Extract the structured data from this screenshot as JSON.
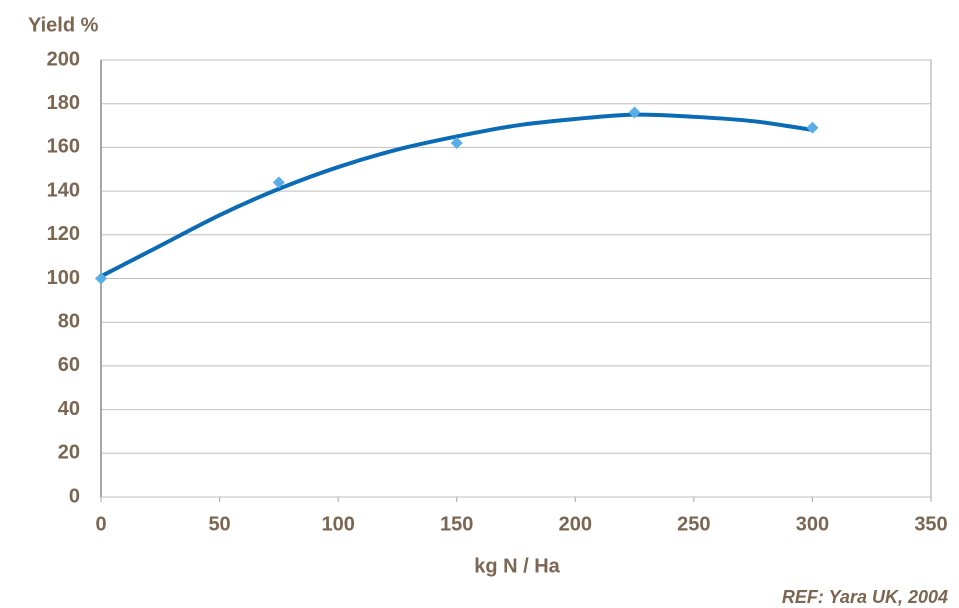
{
  "chart_data": {
    "type": "scatter",
    "ylabel": "Yield %",
    "xlabel": "kg N / Ha",
    "source": "REF: Yara UK, 2004",
    "points": {
      "color": "#5aaee8",
      "x": [
        0,
        75,
        150,
        225,
        300
      ],
      "values": [
        100,
        144,
        162,
        176,
        169
      ]
    },
    "trendline": {
      "color": "#0b6bb5",
      "x": [
        0,
        25,
        50,
        75,
        100,
        125,
        150,
        175,
        200,
        225,
        250,
        275,
        300
      ],
      "values": [
        101,
        115,
        129,
        141,
        151,
        159,
        165,
        170,
        173,
        175,
        174,
        172,
        168
      ]
    },
    "xlim": [
      0,
      350
    ],
    "xticks": [
      0,
      50,
      100,
      150,
      200,
      250,
      300,
      350
    ],
    "ylim": [
      0,
      200
    ],
    "yticks": [
      0,
      20,
      40,
      60,
      80,
      100,
      120,
      140,
      160,
      180,
      200
    ],
    "grid": true
  }
}
